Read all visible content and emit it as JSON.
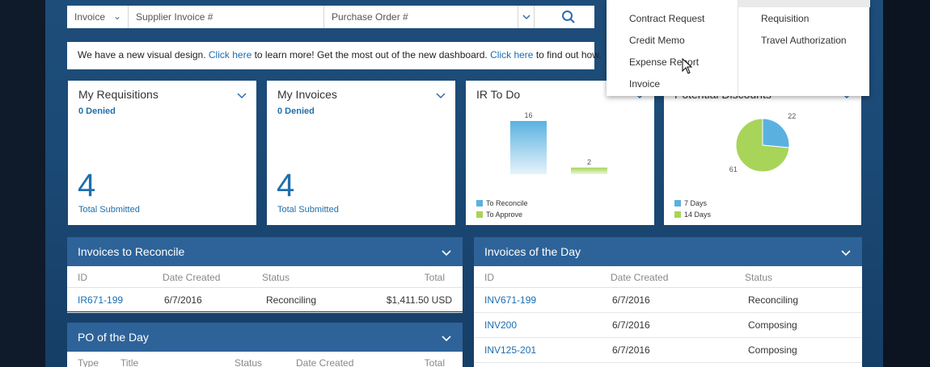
{
  "search": {
    "type_value": "Invoice",
    "supplier_placeholder": "Supplier Invoice #",
    "po_placeholder": "Purchase Order #"
  },
  "banner": {
    "text1": "We have a new visual design.",
    "link1": "Click here",
    "text2": "to learn more! Get the most out of the new dashboard.",
    "link2": "Click here",
    "text3": "to find out how."
  },
  "tiles": {
    "requisitions": {
      "title": "My Requisitions",
      "sub": "0 Denied",
      "count": "4",
      "foot": "Total Submitted"
    },
    "invoices": {
      "title": "My Invoices",
      "sub": "0 Denied",
      "count": "4",
      "foot": "Total Submitted"
    },
    "ir_todo": {
      "title": "IR To Do",
      "legend1": "To Reconcile",
      "legend2": "To Approve"
    },
    "discounts": {
      "title": "Potential Discounts",
      "legend1": "7 Days",
      "legend2": "14 Days"
    }
  },
  "colors": {
    "series1": "#5ab1e0",
    "series2": "#a8d45a",
    "accent": "#1f6fab",
    "header": "#2e6399"
  },
  "chart_data": [
    {
      "type": "bar",
      "categories": [
        "To Reconcile",
        "To Approve"
      ],
      "values": [
        16,
        2
      ],
      "ylim": [
        0,
        16
      ]
    },
    {
      "type": "pie",
      "series": [
        {
          "name": "7 Days",
          "values": [
            22
          ]
        },
        {
          "name": "14 Days",
          "values": [
            61
          ]
        }
      ]
    }
  ],
  "reconcile": {
    "title": "Invoices to Reconcile",
    "headers": [
      "ID",
      "Date Created",
      "Status",
      "Total"
    ],
    "rows": [
      [
        "IR671-199",
        "6/7/2016",
        "Reconciling",
        "$1,411.50 USD"
      ]
    ]
  },
  "po": {
    "title": "PO of the Day",
    "headers": [
      "Type",
      "Title",
      "Status",
      "Date Created",
      "Total"
    ]
  },
  "invday": {
    "title": "Invoices of the Day",
    "headers": [
      "ID",
      "Date Created",
      "Status"
    ],
    "rows": [
      [
        "INV671-199",
        "6/7/2016",
        "Reconciling"
      ],
      [
        "INV200",
        "6/7/2016",
        "Composing"
      ],
      [
        "INV125-201",
        "6/7/2016",
        "Composing"
      ]
    ]
  },
  "menu": {
    "col1": [
      "Contract Request",
      "Credit Memo",
      "Expense Report",
      "Invoice"
    ],
    "col2": [
      "Requisition",
      "Travel Authorization"
    ]
  }
}
